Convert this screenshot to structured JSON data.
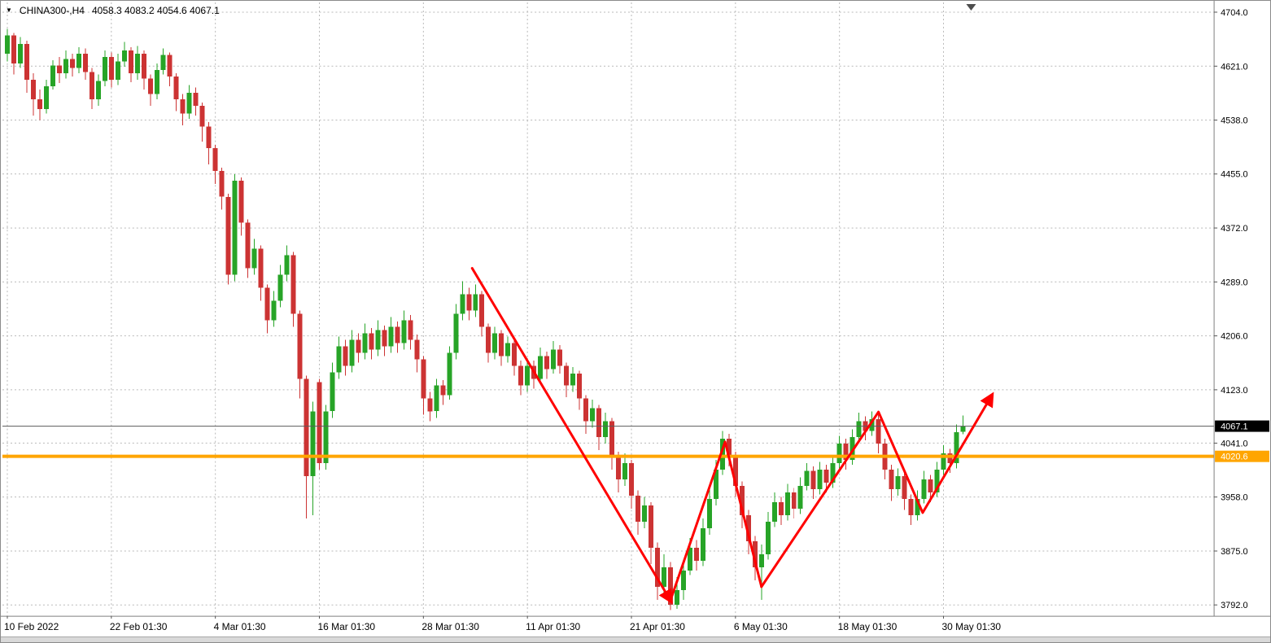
{
  "title": {
    "symbol": "CHINA300-,H4",
    "ohlc": "4058.3 4083.2 4054.6 4067.1"
  },
  "price_axis": {
    "labels": [
      "4704.0",
      "4621.0",
      "4538.0",
      "4455.0",
      "4372.0",
      "4289.0",
      "4206.0",
      "4123.0",
      "4041.0",
      "3958.0",
      "3875.0",
      "3792.0"
    ],
    "current_price_badge": {
      "text": "4067.1",
      "price": 4067.1,
      "bg": "#000000",
      "fg": "#ffffff"
    },
    "hline_badge": {
      "text": "4020.6",
      "price": 4020.6,
      "bg": "#ffa500",
      "fg": "#ffffff"
    }
  },
  "time_axis": {
    "labels": [
      "10 Feb 2022",
      "22 Feb 01:30",
      "4 Mar 01:30",
      "16 Mar 01:30",
      "28 Mar 01:30",
      "11 Apr 01:30",
      "21 Apr 01:30",
      "6 May 01:30",
      "18 May 01:30",
      "30 May 01:30"
    ]
  },
  "chart_data": {
    "type": "candlestick",
    "title": "CHINA300-,H4",
    "symbol": "CHINA300-",
    "timeframe": "H4",
    "last_ohlc": {
      "open": 4058.3,
      "high": 4083.2,
      "low": 4054.6,
      "close": 4067.1
    },
    "ylim": [
      3760,
      4710
    ],
    "y_gridlines": [
      4704,
      4621,
      4538,
      4455,
      4372,
      4289,
      4206,
      4123,
      4041,
      3958,
      3875,
      3792
    ],
    "x_tick_labels": [
      "10 Feb 2022",
      "22 Feb 01:30",
      "4 Mar 01:30",
      "16 Mar 01:30",
      "28 Mar 01:30",
      "11 Apr 01:30",
      "21 Apr 01:30",
      "6 May 01:30",
      "18 May 01:30",
      "30 May 01:30"
    ],
    "x_tick_every": 16,
    "grid": "dotted",
    "legend": "none",
    "colors": {
      "bull": "#27a427",
      "bear": "#cc3333",
      "grid": "#b9b9b9",
      "hline": "#ffa500",
      "price_line": "#5a5a5a",
      "arrow": "#ff0000",
      "axis_text": "#000000"
    },
    "candles_ohlc": [
      [
        4640,
        4678,
        4628,
        4668
      ],
      [
        4668,
        4672,
        4608,
        4625
      ],
      [
        4625,
        4666,
        4618,
        4655
      ],
      [
        4655,
        4660,
        4580,
        4600
      ],
      [
        4600,
        4610,
        4545,
        4570
      ],
      [
        4570,
        4585,
        4538,
        4555
      ],
      [
        4555,
        4600,
        4548,
        4590
      ],
      [
        4590,
        4630,
        4585,
        4622
      ],
      [
        4622,
        4635,
        4595,
        4610
      ],
      [
        4610,
        4645,
        4602,
        4632
      ],
      [
        4632,
        4640,
        4605,
        4618
      ],
      [
        4618,
        4650,
        4610,
        4640
      ],
      [
        4640,
        4648,
        4600,
        4612
      ],
      [
        4612,
        4618,
        4555,
        4570
      ],
      [
        4570,
        4608,
        4560,
        4598
      ],
      [
        4598,
        4645,
        4590,
        4635
      ],
      [
        4635,
        4642,
        4588,
        4600
      ],
      [
        4600,
        4640,
        4592,
        4628
      ],
      [
        4628,
        4658,
        4620,
        4645
      ],
      [
        4645,
        4650,
        4596,
        4610
      ],
      [
        4610,
        4652,
        4600,
        4640
      ],
      [
        4640,
        4645,
        4585,
        4602
      ],
      [
        4602,
        4608,
        4560,
        4578
      ],
      [
        4578,
        4625,
        4570,
        4615
      ],
      [
        4615,
        4648,
        4608,
        4638
      ],
      [
        4638,
        4642,
        4590,
        4605
      ],
      [
        4605,
        4610,
        4552,
        4570
      ],
      [
        4570,
        4578,
        4530,
        4548
      ],
      [
        4548,
        4592,
        4540,
        4580
      ],
      [
        4580,
        4588,
        4545,
        4560
      ],
      [
        4560,
        4565,
        4505,
        4528
      ],
      [
        4528,
        4535,
        4470,
        4495
      ],
      [
        4495,
        4500,
        4440,
        4460
      ],
      [
        4460,
        4465,
        4400,
        4420
      ],
      [
        4420,
        4425,
        4285,
        4300
      ],
      [
        4300,
        4455,
        4290,
        4445
      ],
      [
        4445,
        4450,
        4360,
        4380
      ],
      [
        4380,
        4385,
        4295,
        4310
      ],
      [
        4310,
        4355,
        4300,
        4340
      ],
      [
        4340,
        4345,
        4260,
        4280
      ],
      [
        4280,
        4285,
        4210,
        4230
      ],
      [
        4230,
        4275,
        4220,
        4260
      ],
      [
        4260,
        4315,
        4250,
        4300
      ],
      [
        4300,
        4345,
        4290,
        4330
      ],
      [
        4330,
        4335,
        4220,
        4240
      ],
      [
        4240,
        4245,
        4110,
        4140
      ],
      [
        4140,
        4145,
        3925,
        3990
      ],
      [
        3990,
        4105,
        3930,
        4090
      ],
      [
        4135,
        4140,
        4000,
        4010
      ],
      [
        4010,
        4100,
        4000,
        4090
      ],
      [
        4090,
        4165,
        4080,
        4150
      ],
      [
        4150,
        4205,
        4140,
        4190
      ],
      [
        4190,
        4200,
        4145,
        4160
      ],
      [
        4160,
        4215,
        4150,
        4200
      ],
      [
        4200,
        4210,
        4165,
        4180
      ],
      [
        4180,
        4225,
        4170,
        4210
      ],
      [
        4210,
        4218,
        4170,
        4185
      ],
      [
        4185,
        4230,
        4175,
        4215
      ],
      [
        4215,
        4222,
        4175,
        4190
      ],
      [
        4190,
        4235,
        4180,
        4220
      ],
      [
        4220,
        4228,
        4180,
        4195
      ],
      [
        4195,
        4245,
        4185,
        4230
      ],
      [
        4230,
        4238,
        4185,
        4200
      ],
      [
        4200,
        4208,
        4150,
        4170
      ],
      [
        4170,
        4175,
        4085,
        4110
      ],
      [
        4110,
        4120,
        4075,
        4090
      ],
      [
        4090,
        4140,
        4080,
        4130
      ],
      [
        4130,
        4138,
        4100,
        4115
      ],
      [
        4115,
        4190,
        4108,
        4180
      ],
      [
        4180,
        4255,
        4170,
        4240
      ],
      [
        4240,
        4290,
        4230,
        4270
      ],
      [
        4270,
        4280,
        4230,
        4245
      ],
      [
        4245,
        4285,
        4235,
        4270
      ],
      [
        4270,
        4275,
        4205,
        4220
      ],
      [
        4220,
        4225,
        4165,
        4180
      ],
      [
        4180,
        4220,
        4170,
        4210
      ],
      [
        4210,
        4215,
        4160,
        4175
      ],
      [
        4175,
        4205,
        4165,
        4195
      ],
      [
        4195,
        4200,
        4145,
        4160
      ],
      [
        4160,
        4168,
        4115,
        4130
      ],
      [
        4130,
        4172,
        4120,
        4160
      ],
      [
        4160,
        4168,
        4125,
        4140
      ],
      [
        4140,
        4188,
        4132,
        4175
      ],
      [
        4175,
        4182,
        4140,
        4155
      ],
      [
        4155,
        4198,
        4148,
        4185
      ],
      [
        4185,
        4192,
        4148,
        4160
      ],
      [
        4160,
        4165,
        4112,
        4130
      ],
      [
        4130,
        4158,
        4120,
        4148
      ],
      [
        4148,
        4152,
        4092,
        4110
      ],
      [
        4110,
        4115,
        4055,
        4075
      ],
      [
        4075,
        4108,
        4065,
        4095
      ],
      [
        4095,
        4100,
        4030,
        4050
      ],
      [
        4050,
        4088,
        4040,
        4075
      ],
      [
        4075,
        4080,
        4000,
        4020
      ],
      [
        4020,
        4028,
        3965,
        3985
      ],
      [
        3985,
        4025,
        3975,
        4010
      ],
      [
        4010,
        4015,
        3940,
        3960
      ],
      [
        3960,
        3968,
        3900,
        3920
      ],
      [
        3920,
        3958,
        3910,
        3945
      ],
      [
        3945,
        3950,
        3855,
        3880
      ],
      [
        3880,
        3888,
        3800,
        3820
      ],
      [
        3820,
        3870,
        3805,
        3850
      ],
      [
        3850,
        3858,
        3784,
        3792
      ],
      [
        3792,
        3835,
        3786,
        3815
      ],
      [
        3815,
        3862,
        3800,
        3845
      ],
      [
        3845,
        3895,
        3838,
        3880
      ],
      [
        3880,
        3892,
        3845,
        3860
      ],
      [
        3860,
        3925,
        3852,
        3910
      ],
      [
        3910,
        3970,
        3900,
        3955
      ],
      [
        3955,
        4015,
        3945,
        4000
      ],
      [
        4000,
        4060,
        3992,
        4048
      ],
      [
        4048,
        4055,
        4005,
        4020
      ],
      [
        4020,
        4028,
        3958,
        3975
      ],
      [
        3975,
        3982,
        3910,
        3930
      ],
      [
        3930,
        3938,
        3870,
        3890
      ],
      [
        3890,
        3898,
        3830,
        3850
      ],
      [
        3850,
        3885,
        3800,
        3870
      ],
      [
        3870,
        3935,
        3862,
        3920
      ],
      [
        3920,
        3965,
        3912,
        3950
      ],
      [
        3950,
        3958,
        3915,
        3930
      ],
      [
        3930,
        3978,
        3922,
        3965
      ],
      [
        3965,
        3972,
        3925,
        3940
      ],
      [
        3940,
        3988,
        3932,
        3975
      ],
      [
        3975,
        4010,
        3968,
        3998
      ],
      [
        3998,
        4005,
        3955,
        3970
      ],
      [
        3970,
        4012,
        3962,
        4000
      ],
      [
        4000,
        4008,
        3965,
        3980
      ],
      [
        3980,
        4022,
        3972,
        4010
      ],
      [
        4010,
        4052,
        4002,
        4040
      ],
      [
        4040,
        4048,
        4000,
        4015
      ],
      [
        4015,
        4062,
        4008,
        4050
      ],
      [
        4050,
        4088,
        4042,
        4075
      ],
      [
        4075,
        4082,
        4045,
        4060
      ],
      [
        4060,
        4090,
        4052,
        4078
      ],
      [
        4078,
        4085,
        4025,
        4040
      ],
      [
        4040,
        4048,
        3985,
        4000
      ],
      [
        4000,
        4008,
        3952,
        3970
      ],
      [
        3970,
        4002,
        3960,
        3990
      ],
      [
        3990,
        3996,
        3938,
        3955
      ],
      [
        3955,
        3962,
        3915,
        3930
      ],
      [
        3930,
        3968,
        3922,
        3955
      ],
      [
        3955,
        3998,
        3948,
        3985
      ],
      [
        3985,
        3992,
        3950,
        3965
      ],
      [
        3965,
        4012,
        3958,
        4000
      ],
      [
        4000,
        4038,
        3992,
        4025
      ],
      [
        4025,
        4032,
        3995,
        4010
      ],
      [
        4010,
        4070,
        4002,
        4058
      ],
      [
        4058.3,
        4083.2,
        4054.6,
        4067.1
      ]
    ],
    "annotations": {
      "horizontal_line": {
        "price": 4020.6,
        "color": "#ffa500",
        "stroke_width": 4
      },
      "current_price_line": {
        "price": 4067.1,
        "color": "#5a5a5a"
      },
      "trend_arrows": [
        {
          "points_ip": [
            [
              71.5,
              4310
            ],
            [
              102,
              3799
            ]
          ],
          "arrow_end": true
        },
        {
          "points_ip": [
            [
              102,
              3799
            ],
            [
              110.4,
              4043
            ],
            [
              116,
              3820
            ]
          ],
          "arrow_end": false
        },
        {
          "points_ip": [
            [
              116,
              3820
            ],
            [
              134,
              4089
            ],
            [
              140.8,
              3934
            ],
            [
              151.4,
              4114
            ]
          ],
          "arrow_end": true
        }
      ]
    }
  }
}
